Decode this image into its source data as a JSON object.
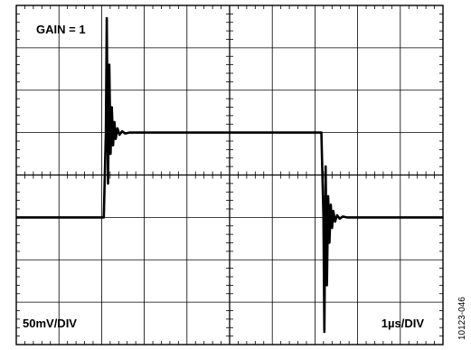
{
  "chart_data": {
    "type": "line",
    "title": "GAIN = 1",
    "annotations": {
      "gain_label": "GAIN = 1",
      "vertical_scale": "50mV/DIV",
      "horizontal_scale": "1µs/DIV"
    },
    "figure_id": "10123-046",
    "grid": true,
    "xlim": [
      0,
      10
    ],
    "ylim": [
      -4,
      4
    ],
    "x_unit": "div",
    "y_unit": "div",
    "series": [
      {
        "values": [
          [
            0,
            -1.0
          ],
          [
            2.0,
            -1.0
          ],
          [
            2.05,
            -1.0
          ],
          [
            2.1,
            1.0
          ],
          [
            2.12,
            3.7
          ],
          [
            2.15,
            -0.2
          ],
          [
            2.18,
            2.6
          ],
          [
            2.21,
            0.5
          ],
          [
            2.24,
            1.6
          ],
          [
            2.27,
            0.7
          ],
          [
            2.3,
            1.25
          ],
          [
            2.33,
            0.85
          ],
          [
            2.37,
            1.1
          ],
          [
            2.42,
            0.95
          ],
          [
            2.48,
            1.03
          ],
          [
            2.55,
            0.98
          ],
          [
            2.65,
            1.0
          ],
          [
            7.1,
            1.0
          ],
          [
            7.15,
            1.0
          ],
          [
            7.2,
            -1.0
          ],
          [
            7.22,
            -3.7
          ],
          [
            7.25,
            0.2
          ],
          [
            7.28,
            -2.6
          ],
          [
            7.31,
            -0.5
          ],
          [
            7.34,
            -1.6
          ],
          [
            7.37,
            -0.7
          ],
          [
            7.4,
            -1.25
          ],
          [
            7.43,
            -0.85
          ],
          [
            7.47,
            -1.1
          ],
          [
            7.52,
            -0.95
          ],
          [
            7.58,
            -1.03
          ],
          [
            7.65,
            -0.98
          ],
          [
            7.75,
            -1.0
          ],
          [
            10,
            -1.0
          ]
        ]
      }
    ]
  }
}
